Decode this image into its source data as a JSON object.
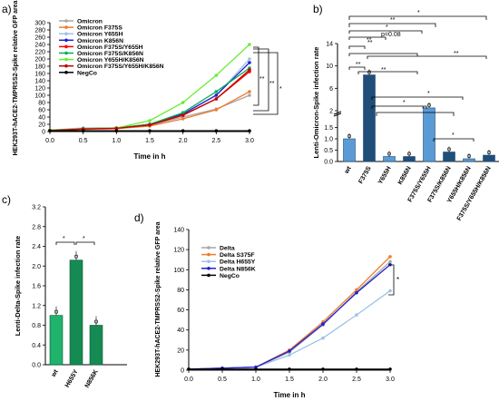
{
  "figure": {
    "panel_labels": [
      "a)",
      "b)",
      "c)",
      "d)"
    ],
    "colors": {
      "Omicron": "#a6a6a6",
      "Omicron F375S": "#ed7d31",
      "Omicron Y655H": "#9dc3e6",
      "Omicron K856N": "#1f1fd1",
      "Omicron F375S/Y655H": "#ff0000",
      "Omicron F375S/K856N": "#00b050",
      "Omicron Y655H/K856N": "#66ee33",
      "Omicron F375S/Y655H/K856N": "#c00000",
      "NegCo": "#000000",
      "Delta": "#a6a6a6",
      "Delta S375F": "#ed7d31",
      "Delta H655Y": "#9dc3e6",
      "Delta N856K": "#1f1fd1",
      "bar_b": "#5b9bd5",
      "bar_c": "#1fb36b"
    }
  },
  "chart_data": [
    {
      "panel": "a)",
      "type": "line",
      "ylabel": "HEK293T-hACE2-TMPRSS2-Spike relative GFP area",
      "xlabel": "Time in h",
      "xlim": [
        0,
        3.0
      ],
      "ylim": [
        0,
        300
      ],
      "x_ticks": [
        "0.0",
        "0.5",
        "1.0",
        "1.5",
        "2.0",
        "2.5",
        "3.0"
      ],
      "y_ticks": [
        "0",
        "20",
        "40",
        "60",
        "80",
        "100",
        "120",
        "140",
        "160",
        "180",
        "200",
        "220",
        "240",
        "260",
        "280",
        "300"
      ],
      "x": [
        0,
        0.5,
        1.0,
        1.5,
        2.0,
        2.5,
        3.0
      ],
      "legend_position": "top-left",
      "series": [
        {
          "name": "Omicron",
          "values": [
            3,
            6,
            8,
            18,
            40,
            62,
            100
          ]
        },
        {
          "name": "Omicron F375S",
          "values": [
            3,
            7,
            8,
            15,
            35,
            60,
            110
          ]
        },
        {
          "name": "Omicron Y655H",
          "values": [
            4,
            10,
            10,
            20,
            50,
            100,
            200
          ]
        },
        {
          "name": "Omicron K856N",
          "values": [
            3,
            8,
            9,
            20,
            48,
            100,
            190
          ]
        },
        {
          "name": "Omicron F375S/Y655H",
          "values": [
            3,
            7,
            9,
            20,
            45,
            90,
            165
          ]
        },
        {
          "name": "Omicron F375S/K856N",
          "values": [
            3,
            8,
            10,
            20,
            52,
            110,
            175
          ]
        },
        {
          "name": "Omicron Y655H/K856N",
          "values": [
            4,
            8,
            10,
            30,
            80,
            155,
            240
          ]
        },
        {
          "name": "Omicron F375S/Y655H/K856N",
          "values": [
            3,
            7,
            9,
            18,
            45,
            90,
            170
          ]
        },
        {
          "name": "NegCo",
          "values": [
            2,
            2,
            2,
            2,
            2,
            2,
            2
          ]
        }
      ],
      "annotations": [
        "**",
        "**",
        "*"
      ]
    },
    {
      "panel": "b)",
      "type": "bar",
      "ylabel": "Lenti-Omicron-Spike infection rate",
      "ylim": [
        0,
        14
      ],
      "y_ticks": [
        "0.0",
        "0.5",
        "1.0",
        "1.5",
        "2",
        "6",
        "10",
        "14"
      ],
      "axis_break": [
        2,
        2
      ],
      "categories": [
        "wt",
        "F375S",
        "Y655H",
        "K856N",
        "F375S/Y655H",
        "F375S/K856N",
        "Y655H/K856N",
        "F375S/Y655H/K856N"
      ],
      "values": [
        1.0,
        8.4,
        0.22,
        0.22,
        2.5,
        0.42,
        0.12,
        0.28
      ],
      "annotations": [
        "*",
        "**",
        "*",
        "**",
        "p=0.08",
        "**",
        "*",
        "*",
        "*",
        "*",
        "**",
        "**",
        "**"
      ]
    },
    {
      "panel": "c)",
      "type": "bar",
      "ylabel": "Lenti-Delta-Spike infection rate",
      "ylim": [
        0,
        3.2
      ],
      "y_ticks": [
        "0.0",
        "0.4",
        "0.8",
        "1.2",
        "1.6",
        "2.0",
        "2.4",
        "2.8",
        "3.2"
      ],
      "categories": [
        "wt",
        "H655Y",
        "N856K"
      ],
      "values": [
        1.0,
        2.12,
        0.8
      ],
      "annotations": [
        "*",
        "*"
      ]
    },
    {
      "panel": "d)",
      "type": "line",
      "ylabel": "HEK293T-hACE2-TMPRSS2-Spike relative GFP area",
      "xlabel": "Time in h",
      "xlim": [
        0,
        3.0
      ],
      "ylim": [
        0,
        140
      ],
      "x_ticks": [
        "0.0",
        "0.5",
        "1.0",
        "1.5",
        "2.0",
        "2.5",
        "3.0"
      ],
      "y_ticks": [
        "0",
        "20",
        "40",
        "60",
        "80",
        "100",
        "120",
        "140"
      ],
      "x": [
        0,
        0.5,
        1.0,
        1.5,
        2.0,
        2.5,
        3.0
      ],
      "legend_position": "top-left",
      "series": [
        {
          "name": "Delta",
          "values": [
            1,
            2,
            3,
            18,
            45,
            78,
            108
          ]
        },
        {
          "name": "Delta S375F",
          "values": [
            1,
            2,
            3,
            20,
            48,
            80,
            113
          ]
        },
        {
          "name": "Delta H655Y",
          "values": [
            1,
            2,
            3,
            15,
            32,
            55,
            79
          ]
        },
        {
          "name": "Delta N856K",
          "values": [
            1,
            2,
            3,
            19,
            46,
            77,
            105
          ]
        },
        {
          "name": "NegCo",
          "values": [
            1,
            1,
            1,
            1,
            1,
            1,
            1
          ]
        }
      ],
      "annotations": [
        "*"
      ]
    }
  ]
}
